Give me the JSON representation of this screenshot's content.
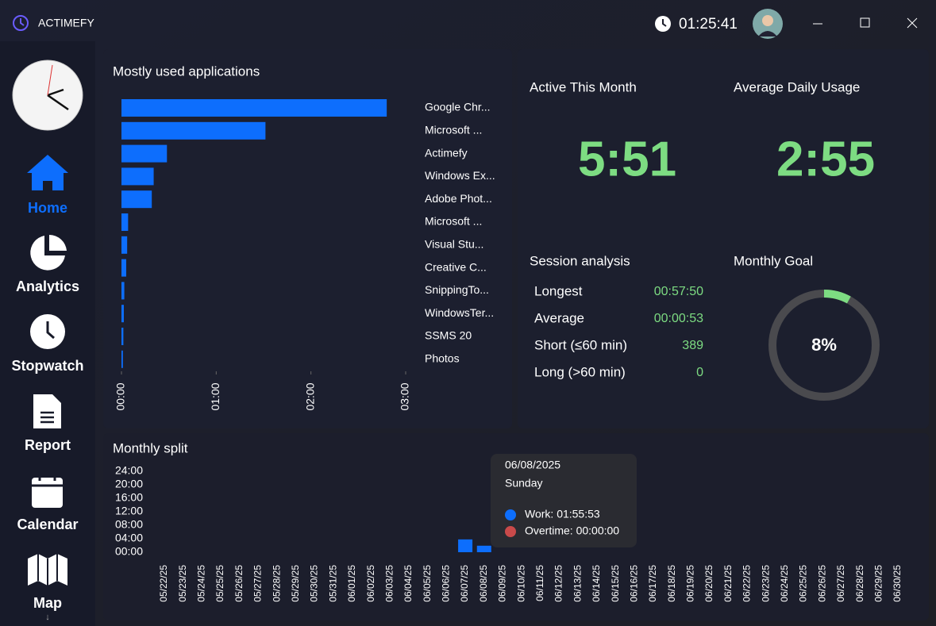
{
  "app": {
    "title": "ACTIMEFY",
    "clock": "01:25:41"
  },
  "nav": [
    "Home",
    "Analytics",
    "Stopwatch",
    "Report",
    "Calendar",
    "Map"
  ],
  "stats": {
    "active_month": {
      "label": "Active This Month",
      "value": "5:51"
    },
    "average_daily": {
      "label": "Average Daily Usage",
      "value": "2:55"
    }
  },
  "session": {
    "title": "Session analysis",
    "rows": [
      [
        "Longest",
        "00:57:50"
      ],
      [
        "Average",
        "00:00:53"
      ],
      [
        "Short (≤60 min)",
        389
      ],
      [
        "Long (>60 min)",
        0
      ]
    ]
  },
  "tooltip": {
    "date": "06/08/2025",
    "day": "Sunday",
    "items": [
      "Work: 01:55:53",
      "Overtime: 00:00:00"
    ]
  },
  "chart_data": [
    {
      "type": "hbar",
      "title": "Mostly used applications",
      "color": "#0d6efd",
      "categories": [
        "Google Chr...",
        "Microsoft ...",
        "Actimefy",
        "Windows Ex...",
        "Adobe Phot...",
        "Microsoft ...",
        "Visual Stu...",
        "Creative C...",
        "SnippingTo...",
        "WindowsTer...",
        "SSMS 20",
        "Photos"
      ],
      "values": [
        2.8,
        1.52,
        0.48,
        0.34,
        0.32,
        0.07,
        0.06,
        0.05,
        0.03,
        0.025,
        0.02,
        0.015
      ],
      "xlim": [
        0,
        3
      ],
      "xticks": [
        {
          "value": 0,
          "label": "00:00"
        },
        {
          "value": 1,
          "label": "01:00"
        },
        {
          "value": 2,
          "label": "02:00"
        },
        {
          "value": 3,
          "label": "03:00"
        }
      ]
    },
    {
      "type": "bar",
      "title": "Monthly split",
      "color": "#0d6efd",
      "categories": [
        "05/22/25",
        "05/23/25",
        "05/24/25",
        "05/25/25",
        "05/26/25",
        "05/27/25",
        "05/28/25",
        "05/29/25",
        "05/30/25",
        "05/31/25",
        "06/01/25",
        "06/02/25",
        "06/03/25",
        "06/04/25",
        "06/05/25",
        "06/06/25",
        "06/07/25",
        "06/08/25",
        "06/09/25",
        "06/10/25",
        "06/11/25",
        "06/12/25",
        "06/13/25",
        "06/14/25",
        "06/15/25",
        "06/16/25",
        "06/17/25",
        "06/18/25",
        "06/19/25",
        "06/20/25",
        "06/21/25",
        "06/22/25",
        "06/23/25",
        "06/24/25",
        "06/25/25",
        "06/26/25",
        "06/27/25",
        "06/28/25",
        "06/29/25",
        "06/30/25"
      ],
      "values": [
        0,
        0,
        0,
        0,
        0,
        0,
        0,
        0,
        0,
        0,
        0,
        0,
        0,
        0,
        0,
        0,
        3.8,
        1.93,
        0,
        0,
        0,
        0,
        0,
        0,
        0,
        0,
        0,
        0,
        0,
        0,
        0,
        0,
        0,
        0,
        0,
        0,
        0,
        0,
        0,
        0
      ],
      "ylim": [
        0,
        24
      ],
      "yticks": [
        {
          "value": 0,
          "label": "00:00"
        },
        {
          "value": 4,
          "label": "04:00"
        },
        {
          "value": 8,
          "label": "08:00"
        },
        {
          "value": 12,
          "label": "12:00"
        },
        {
          "value": 16,
          "label": "16:00"
        },
        {
          "value": 20,
          "label": "20:00"
        },
        {
          "value": 24,
          "label": "24:00"
        }
      ]
    },
    {
      "type": "gauge",
      "title": "Monthly Goal",
      "value": 8,
      "value_label": "8%",
      "range": [
        0,
        100
      ],
      "color": "#7ddc82"
    }
  ]
}
